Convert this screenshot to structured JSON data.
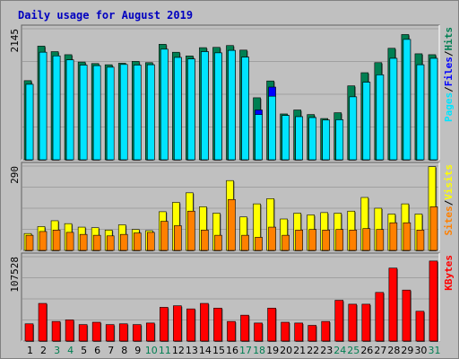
{
  "title": "Daily usage for August 2019",
  "colors": {
    "background": "#c0c0c0",
    "plot_background": "#c0c0c0",
    "hits": "#007f52",
    "files": "#0000ff",
    "pages": "#00e4ff",
    "visits": "#ffff00",
    "sites": "#ff8000",
    "kbytes": "#ff0000",
    "weekday_label": "#000000",
    "weekend_label": "#007f52",
    "title": "#0000c0"
  },
  "chart_data": [
    {
      "type": "bar",
      "panel": "top",
      "scale_label": "2145",
      "ymax": 2145,
      "categories": [
        "1",
        "2",
        "3",
        "4",
        "5",
        "6",
        "7",
        "8",
        "9",
        "10",
        "11",
        "12",
        "13",
        "14",
        "15",
        "16",
        "17",
        "18",
        "19",
        "20",
        "21",
        "22",
        "23",
        "24",
        "25",
        "26",
        "27",
        "28",
        "29",
        "30",
        "31"
      ],
      "legend": [
        {
          "text": "Pages",
          "color_key": "pages"
        },
        {
          "text": "/",
          "color_key": "slash"
        },
        {
          "text": "Files",
          "color_key": "files"
        },
        {
          "text": "/",
          "color_key": "slash"
        },
        {
          "text": "Hits",
          "color_key": "hits"
        }
      ],
      "series": [
        {
          "name": "Hits",
          "values": [
            1295,
            1860,
            1770,
            1720,
            1600,
            1575,
            1555,
            1580,
            1610,
            1590,
            1890,
            1760,
            1700,
            1835,
            1840,
            1870,
            1795,
            1015,
            1290,
            750,
            815,
            740,
            675,
            770,
            1210,
            1425,
            1590,
            1825,
            2050,
            1735,
            1720
          ],
          "color_key": "hits"
        },
        {
          "name": "Files",
          "values": [
            1235,
            1760,
            1700,
            1635,
            1550,
            1540,
            1515,
            1560,
            1550,
            1555,
            1810,
            1675,
            1650,
            1770,
            1750,
            1790,
            1680,
            815,
            1190,
            725,
            705,
            690,
            650,
            655,
            1030,
            1270,
            1390,
            1660,
            1970,
            1555,
            1660
          ],
          "color_key": "files"
        },
        {
          "name": "Pages",
          "values": [
            1235,
            1760,
            1700,
            1635,
            1550,
            1540,
            1515,
            1560,
            1550,
            1555,
            1810,
            1675,
            1650,
            1770,
            1750,
            1790,
            1680,
            740,
            1040,
            725,
            705,
            690,
            650,
            655,
            1030,
            1270,
            1390,
            1660,
            1970,
            1555,
            1660
          ],
          "color_key": "pages"
        }
      ]
    },
    {
      "type": "bar",
      "panel": "middle",
      "scale_label": "290",
      "ymax": 290,
      "categories": [
        "1",
        "2",
        "3",
        "4",
        "5",
        "6",
        "7",
        "8",
        "9",
        "10",
        "11",
        "12",
        "13",
        "14",
        "15",
        "16",
        "17",
        "18",
        "19",
        "20",
        "21",
        "22",
        "23",
        "24",
        "25",
        "26",
        "27",
        "28",
        "29",
        "30",
        "31"
      ],
      "legend": [
        {
          "text": "Sites",
          "color_key": "sites"
        },
        {
          "text": "/",
          "color_key": "slash"
        },
        {
          "text": "Visits",
          "color_key": "visits"
        }
      ],
      "series": [
        {
          "name": "Visits",
          "values": [
            58,
            82,
            102,
            92,
            80,
            78,
            70,
            88,
            72,
            68,
            133,
            165,
            198,
            150,
            128,
            240,
            115,
            160,
            178,
            108,
            128,
            122,
            130,
            128,
            135,
            182,
            145,
            125,
            160,
            125,
            288
          ],
          "color_key": "visits"
        },
        {
          "name": "Sites",
          "values": [
            52,
            65,
            70,
            62,
            55,
            52,
            50,
            55,
            60,
            62,
            100,
            85,
            135,
            70,
            52,
            175,
            52,
            45,
            80,
            52,
            70,
            72,
            70,
            72,
            70,
            75,
            72,
            95,
            95,
            70,
            150
          ],
          "color_key": "sites"
        }
      ]
    },
    {
      "type": "bar",
      "panel": "bottom",
      "scale_label": "107528",
      "ymax": 107528,
      "categories": [
        "1",
        "2",
        "3",
        "4",
        "5",
        "6",
        "7",
        "8",
        "9",
        "10",
        "11",
        "12",
        "13",
        "14",
        "15",
        "16",
        "17",
        "18",
        "19",
        "20",
        "21",
        "22",
        "23",
        "24",
        "25",
        "26",
        "27",
        "28",
        "29",
        "30",
        "31"
      ],
      "legend": [
        {
          "text": "KBytes",
          "color_key": "kbytes"
        }
      ],
      "series": [
        {
          "name": "KBytes",
          "values": [
            22000,
            48000,
            25000,
            27000,
            21000,
            24000,
            21000,
            22000,
            21000,
            23000,
            43000,
            45000,
            41000,
            48000,
            42000,
            25000,
            33000,
            23000,
            42000,
            24000,
            23000,
            20000,
            25000,
            52000,
            47000,
            47000,
            62000,
            93000,
            65000,
            38000,
            102000
          ],
          "color_key": "kbytes"
        }
      ]
    }
  ],
  "weekend_days": [
    "3",
    "4",
    "10",
    "11",
    "17",
    "18",
    "24",
    "25",
    "31"
  ]
}
